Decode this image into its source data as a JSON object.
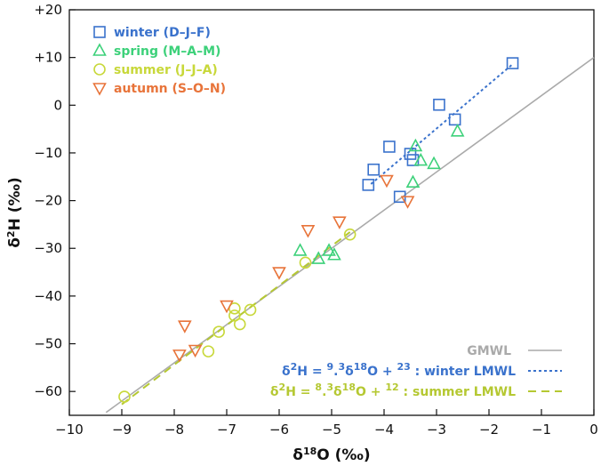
{
  "chart_data": {
    "type": "scatter",
    "xlabel": "δ18O (‰)",
    "ylabel": "δ2H (‰)",
    "xlim": [
      -10,
      0
    ],
    "ylim": [
      -65,
      20
    ],
    "x_ticks": [
      -10,
      -9,
      -8,
      -7,
      -6,
      -5,
      -4,
      -3,
      -2,
      -1,
      0
    ],
    "y_ticks": [
      20,
      10,
      0,
      -10,
      -20,
      -30,
      -40,
      -50,
      -60
    ],
    "x_tick_labels": [
      "−10",
      "−9",
      "−8",
      "−7",
      "−6",
      "−5",
      "−4",
      "−3",
      "−2",
      "−1",
      "0"
    ],
    "y_tick_labels": [
      "+20",
      "+10",
      "0",
      "−10",
      "−20",
      "−30",
      "−40",
      "−50",
      "−60"
    ],
    "series": [
      {
        "name": "winter (D–J–F)",
        "marker": "square",
        "color": "#3a72cc",
        "points": [
          [
            -1.55,
            8.8
          ],
          [
            -2.95,
            0.1
          ],
          [
            -2.65,
            -3.0
          ],
          [
            -3.5,
            -10.2
          ],
          [
            -3.45,
            -11.5
          ],
          [
            -3.9,
            -8.7
          ],
          [
            -4.2,
            -13.5
          ],
          [
            -4.3,
            -16.7
          ],
          [
            -3.7,
            -19.2
          ]
        ]
      },
      {
        "name": "spring (M–A–M)",
        "marker": "triangle-up",
        "color": "#3dd17a",
        "points": [
          [
            -3.4,
            -8.6
          ],
          [
            -2.6,
            -5.5
          ],
          [
            -3.3,
            -11.6
          ],
          [
            -3.05,
            -12.3
          ],
          [
            -3.45,
            -16.2
          ],
          [
            -5.6,
            -30.5
          ],
          [
            -5.05,
            -30.5
          ],
          [
            -5.25,
            -32.2
          ],
          [
            -4.95,
            -31.4
          ]
        ]
      },
      {
        "name": "summer (J–J–A)",
        "marker": "circle",
        "color": "#c8d83a",
        "points": [
          [
            -4.65,
            -27.1
          ],
          [
            -5.5,
            -33.0
          ],
          [
            -6.55,
            -42.9
          ],
          [
            -6.85,
            -42.6
          ],
          [
            -6.85,
            -44.1
          ],
          [
            -6.75,
            -45.9
          ],
          [
            -7.15,
            -47.5
          ],
          [
            -7.35,
            -51.6
          ],
          [
            -8.95,
            -61.1
          ]
        ]
      },
      {
        "name": "autumn (S–O–N)",
        "marker": "triangle-down",
        "color": "#e8743a",
        "points": [
          [
            -4.85,
            -24.4
          ],
          [
            -5.45,
            -26.2
          ],
          [
            -6.0,
            -35.0
          ],
          [
            -3.95,
            -15.7
          ],
          [
            -3.55,
            -20.1
          ],
          [
            -7.0,
            -42.0
          ],
          [
            -7.8,
            -46.2
          ],
          [
            -7.6,
            -51.3
          ],
          [
            -7.9,
            -52.3
          ]
        ]
      }
    ],
    "lines": [
      {
        "name": "GMWL",
        "slope": 8,
        "intercept": 10,
        "x_range": [
          -9.3,
          0
        ],
        "color": "#aaaaaa",
        "style": "solid"
      },
      {
        "name": "winter LMWL",
        "slope": 9.3,
        "intercept": 23,
        "x_range": [
          -4.25,
          -1.55
        ],
        "color": "#3a72cc",
        "style": "dotted"
      },
      {
        "name": "summer LMWL",
        "slope": 8.3,
        "intercept": 12,
        "x_range": [
          -9.0,
          -4.65
        ],
        "color": "#b5c832",
        "style": "dashed"
      }
    ],
    "legend": {
      "position": "top-left",
      "entries": [
        "winter (D–J–F)",
        "spring (M–A–M)",
        "summer (J–J–A)",
        "autumn (S–O–N)"
      ]
    },
    "line_legend": {
      "position": "bottom-right",
      "gmwl_label": "GMWL",
      "winter_eq": "δ2H = 9.3δ18O + 23 : winter LMWL",
      "summer_eq": "δ2H = 8.3δ18O + 12 : summer LMWL"
    }
  }
}
